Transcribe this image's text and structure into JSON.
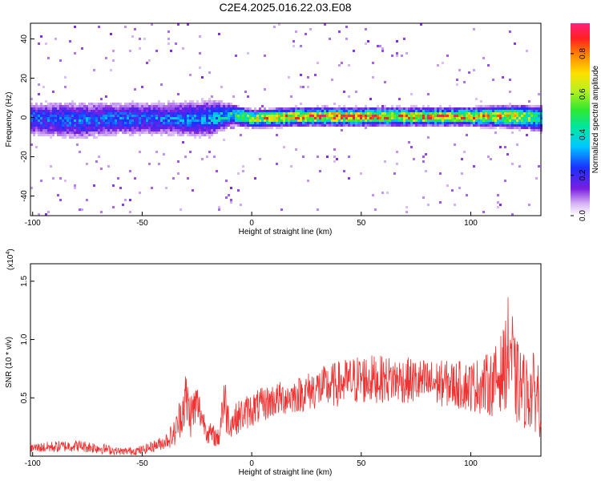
{
  "title": "C2E4.2025.016.22.03.E08",
  "colors": {
    "snr_line": "#ee3333",
    "axis": "#000000",
    "background": "#ffffff"
  },
  "chart_data": [
    {
      "type": "heatmap",
      "xlabel": "Height of straight line (km)",
      "ylabel": "Frequency (Hz)",
      "xlim": [
        -101,
        132
      ],
      "ylim": [
        -50,
        48
      ],
      "xticks": [
        -100,
        -50,
        0,
        50,
        100
      ],
      "xtick_labels": [
        "-100",
        "-50",
        "0",
        "50",
        "100"
      ],
      "yticks": [
        -40,
        -20,
        0,
        20,
        40
      ],
      "ytick_labels": [
        "-40",
        "-20",
        "0",
        "20",
        "40"
      ],
      "colormap": "rainbow (white-violet-blue-cyan-green-yellow-red-magenta)",
      "colorbar": {
        "label": "Normalized spectral amplitude",
        "range": [
          0,
          0.95
        ],
        "ticks": [
          0.0,
          0.2,
          0.4,
          0.6,
          0.8
        ],
        "tick_labels": [
          "0.0",
          "0.2",
          "0.4",
          "0.6",
          "0.8"
        ]
      },
      "ridge": {
        "x": [
          -100,
          -80,
          -60,
          -40,
          -20,
          -10,
          0,
          20,
          40,
          60,
          80,
          100,
          120,
          132
        ],
        "center_freq_hz": [
          0,
          -1,
          0,
          0,
          0,
          2,
          0,
          1,
          1,
          1,
          1,
          1,
          1,
          0
        ],
        "half_width_hz": [
          8,
          9,
          8,
          8,
          9,
          5,
          4,
          4,
          4,
          4,
          4,
          4,
          5,
          6
        ],
        "peak_amplitude": [
          0.3,
          0.3,
          0.3,
          0.3,
          0.35,
          0.5,
          0.75,
          0.9,
          0.9,
          0.85,
          0.85,
          0.85,
          0.8,
          0.5
        ]
      }
    },
    {
      "type": "line",
      "xlabel": "Height of straight line (km)",
      "ylabel": "SNR (10 * v/v)",
      "scale_label": "(x10",
      "scale_exponent": "4",
      "xlim": [
        -101,
        132
      ],
      "ylim": [
        0,
        1.65
      ],
      "xticks": [
        -100,
        -50,
        0,
        50,
        100
      ],
      "xtick_labels": [
        "-100",
        "-50",
        "0",
        "50",
        "100"
      ],
      "yticks": [
        0.5,
        1.0,
        1.5
      ],
      "ytick_labels": [
        "0.5",
        "1.0",
        "1.5"
      ],
      "series": [
        {
          "x": [
            -100,
            -90,
            -80,
            -70,
            -60,
            -50,
            -40,
            -35,
            -30,
            -28,
            -25,
            -22,
            -20,
            -15,
            -13,
            -10,
            -5,
            0,
            10,
            20,
            30,
            40,
            50,
            60,
            70,
            80,
            90,
            100,
            110,
            115,
            118,
            120,
            125,
            130,
            132
          ],
          "y": [
            0.07,
            0.08,
            0.09,
            0.07,
            0.04,
            0.05,
            0.12,
            0.2,
            0.5,
            0.35,
            0.45,
            0.3,
            0.2,
            0.15,
            0.5,
            0.28,
            0.35,
            0.4,
            0.48,
            0.52,
            0.58,
            0.62,
            0.66,
            0.66,
            0.65,
            0.63,
            0.62,
            0.6,
            0.62,
            0.75,
            0.95,
            0.65,
            0.55,
            0.55,
            0.5
          ],
          "noise_amplitude": [
            0.04,
            0.05,
            0.05,
            0.05,
            0.03,
            0.04,
            0.06,
            0.12,
            0.25,
            0.2,
            0.2,
            0.1,
            0.1,
            0.08,
            0.3,
            0.12,
            0.15,
            0.15,
            0.15,
            0.15,
            0.18,
            0.2,
            0.22,
            0.2,
            0.2,
            0.2,
            0.2,
            0.22,
            0.28,
            0.35,
            0.55,
            0.38,
            0.32,
            0.35,
            0.35
          ]
        }
      ]
    }
  ]
}
